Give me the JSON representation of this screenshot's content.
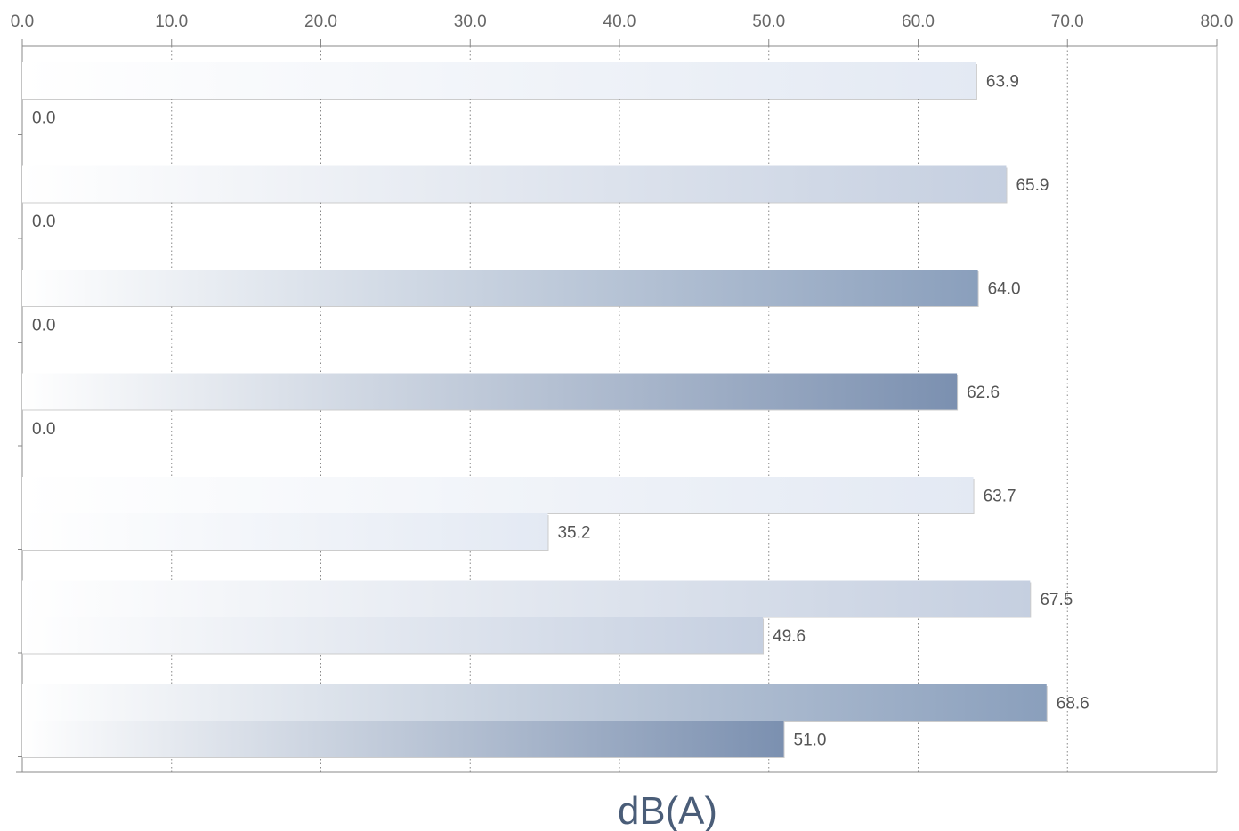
{
  "chart_data": {
    "type": "bar",
    "orientation": "horizontal",
    "title": "",
    "xlabel": "dB(A)",
    "ylabel": "",
    "xlim": [
      0,
      80
    ],
    "x_ticks": [
      "0.0",
      "10.0",
      "20.0",
      "30.0",
      "40.0",
      "50.0",
      "60.0",
      "70.0",
      "80.0"
    ],
    "x_axis_position": "top",
    "grid": "vertical dotted",
    "legend": "none",
    "groups": [
      {
        "bars": [
          {
            "value": 63.9,
            "label": "63.9",
            "shade": 0
          },
          {
            "value": 0.0,
            "label": "0.0",
            "shade": 0
          }
        ]
      },
      {
        "bars": [
          {
            "value": 65.9,
            "label": "65.9",
            "shade": 1
          },
          {
            "value": 0.0,
            "label": "0.0",
            "shade": 1
          }
        ]
      },
      {
        "bars": [
          {
            "value": 64.0,
            "label": "64.0",
            "shade": 2
          },
          {
            "value": 0.0,
            "label": "0.0",
            "shade": 2
          }
        ]
      },
      {
        "bars": [
          {
            "value": 62.6,
            "label": "62.6",
            "shade": 3
          },
          {
            "value": 0.0,
            "label": "0.0",
            "shade": 3
          }
        ]
      },
      {
        "bars": [
          {
            "value": 63.7,
            "label": "63.7",
            "shade": 0
          },
          {
            "value": 35.2,
            "label": "35.2",
            "shade": 0
          }
        ]
      },
      {
        "bars": [
          {
            "value": 67.5,
            "label": "67.5",
            "shade": 1
          },
          {
            "value": 49.6,
            "label": "49.6",
            "shade": 1
          }
        ]
      },
      {
        "bars": [
          {
            "value": 68.6,
            "label": "68.6",
            "shade": 2
          },
          {
            "value": 51.0,
            "label": "51.0",
            "shade": 3
          }
        ]
      }
    ],
    "colors": {
      "gradient_start": "#ffffff",
      "shade_0_end": "#e3e9f3",
      "shade_1_end": "#c5cfe0",
      "shade_2_end": "#8a9fbc",
      "shade_3_end": "#7b90b0",
      "bar_shadow": "#8f8f8f",
      "grid": "#888888",
      "axis": "#888888",
      "axis_title": "#4a5d78"
    }
  }
}
